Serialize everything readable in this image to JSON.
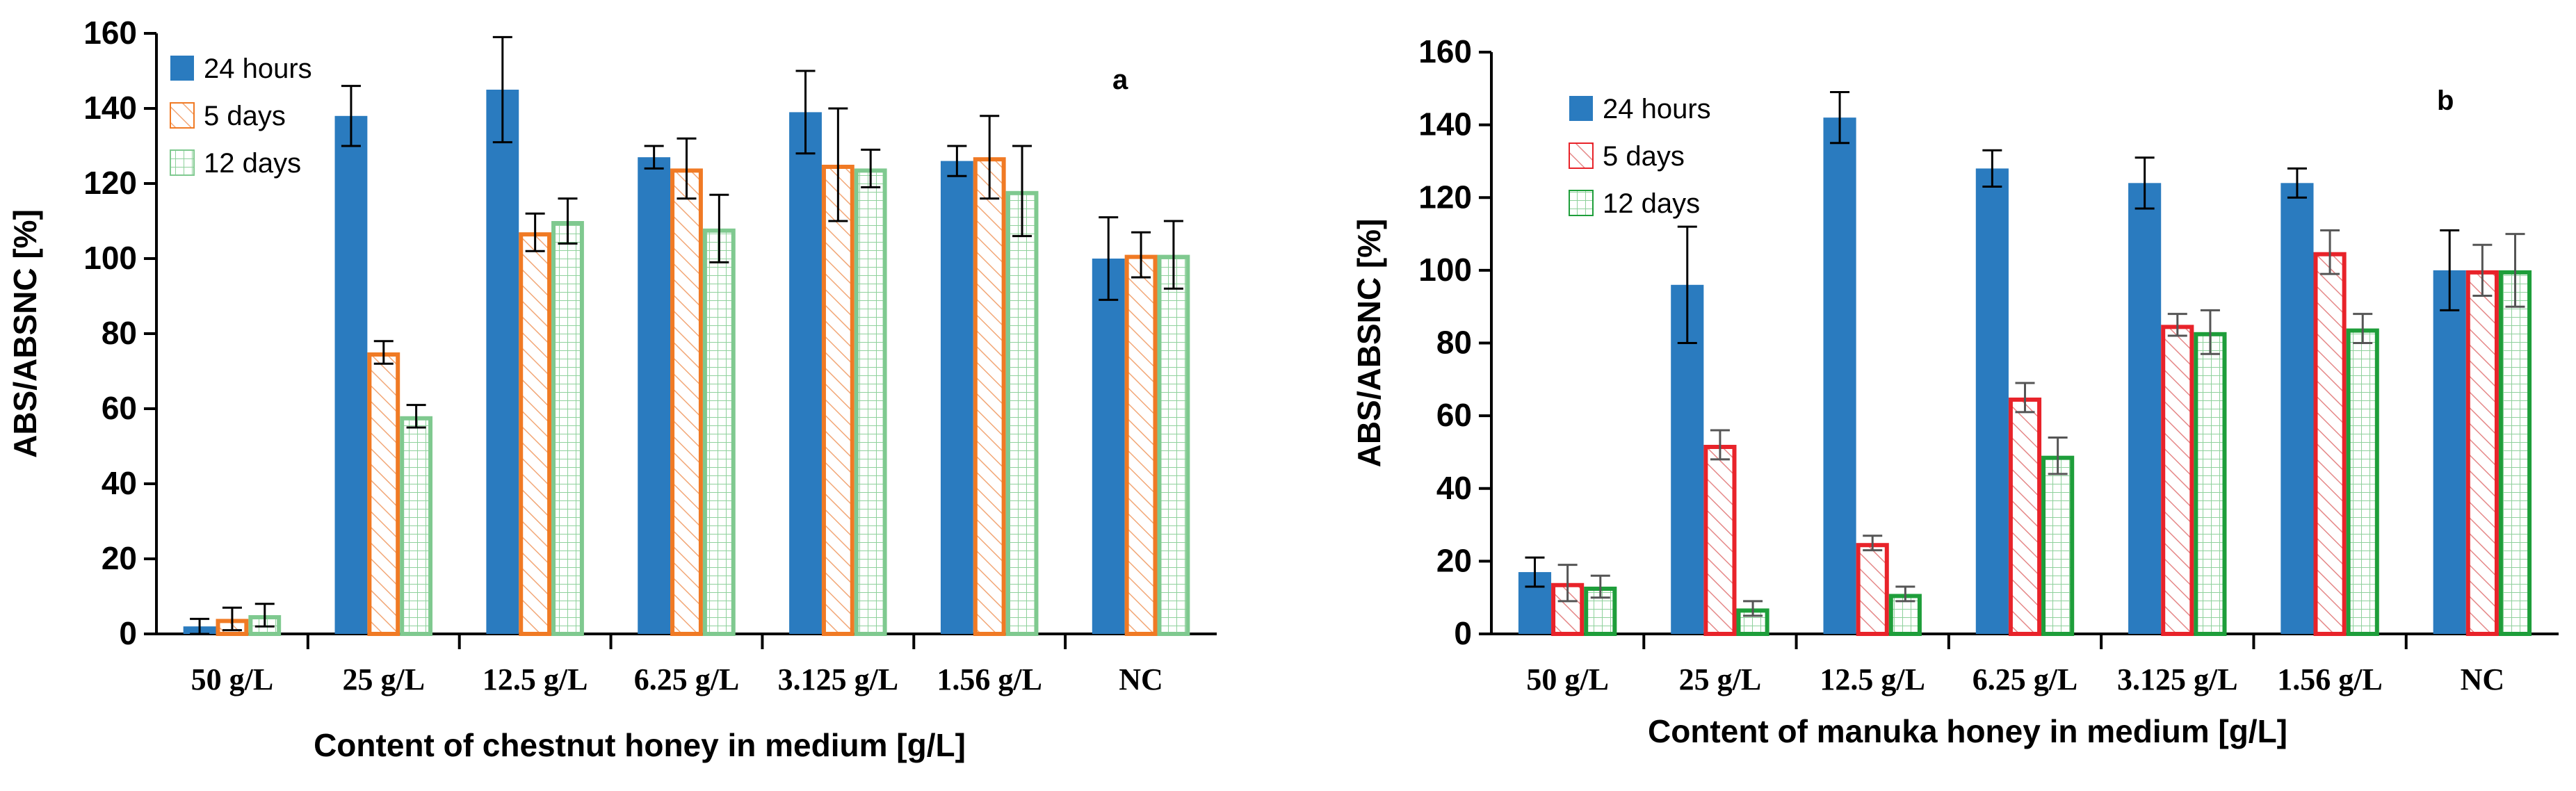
{
  "colors": {
    "blue": "#2a7bbf",
    "orange": "#f07a24",
    "red": "#e8232a",
    "hatch_red": "#e58888",
    "green_light": "#7fc98f",
    "green": "#1e9e3a"
  },
  "chart_data": [
    {
      "type": "bar",
      "panel": "a",
      "xlabel": "Content of chestnut honey in medium [g/L]",
      "ylabel": "ABS/ABSNC [%]",
      "ylim": [
        0,
        160
      ],
      "yticks": [
        0,
        20,
        40,
        60,
        80,
        100,
        120,
        140,
        160
      ],
      "categories": [
        "50 g/L",
        "25 g/L",
        "12.5 g/L",
        "6.25 g/L",
        "3.125 g/L",
        "1.56 g/L",
        "NC"
      ],
      "legend_position": "top-left",
      "series": [
        {
          "name": "24 hours",
          "values": [
            2,
            138,
            145,
            127,
            139,
            126,
            100
          ],
          "errors": [
            2,
            8,
            14,
            3,
            11,
            4,
            11
          ]
        },
        {
          "name": "5 days",
          "values": [
            4,
            75,
            107,
            124,
            125,
            127,
            101
          ],
          "errors": [
            3,
            3,
            5,
            8,
            15,
            11,
            6
          ]
        },
        {
          "name": "12 days",
          "values": [
            5,
            58,
            110,
            108,
            124,
            118,
            101
          ],
          "errors": [
            3,
            3,
            6,
            9,
            5,
            12,
            9
          ]
        }
      ]
    },
    {
      "type": "bar",
      "panel": "b",
      "xlabel": "Content of manuka honey in medium [g/L]",
      "ylabel": "ABS/ABSNC [%]",
      "ylim": [
        0,
        160
      ],
      "yticks": [
        0,
        20,
        40,
        60,
        80,
        100,
        120,
        140,
        160
      ],
      "categories": [
        "50 g/L",
        "25 g/L",
        "12.5 g/L",
        "6.25 g/L",
        "3.125 g/L",
        "1.56 g/L",
        "NC"
      ],
      "legend_position": "top-left",
      "series": [
        {
          "name": "24 hours",
          "values": [
            17,
            96,
            142,
            128,
            124,
            124,
            100
          ],
          "errors": [
            4,
            16,
            7,
            5,
            7,
            4,
            11
          ]
        },
        {
          "name": "5 days",
          "values": [
            14,
            52,
            25,
            65,
            85,
            105,
            100
          ],
          "errors": [
            5,
            4,
            2,
            4,
            3,
            6,
            7
          ]
        },
        {
          "name": "12 days",
          "values": [
            13,
            7,
            11,
            49,
            83,
            84,
            100
          ],
          "errors": [
            3,
            2,
            2,
            5,
            6,
            4,
            10
          ]
        }
      ]
    }
  ]
}
